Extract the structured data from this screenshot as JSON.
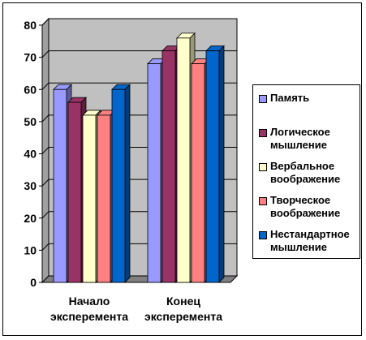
{
  "chart_data": {
    "type": "bar",
    "title": "",
    "xlabel": "",
    "ylabel": "",
    "ylim": [
      0,
      80
    ],
    "yticks": [
      0,
      10,
      20,
      30,
      40,
      50,
      60,
      70,
      80
    ],
    "grid": true,
    "legend_position": "right",
    "categories": [
      "Начало эксперемента",
      "Конец эксперемента"
    ],
    "series": [
      {
        "name": "Память",
        "values": [
          60,
          68
        ],
        "color": "#9999ff"
      },
      {
        "name": "Логическое мышление",
        "values": [
          56,
          72
        ],
        "color": "#993366"
      },
      {
        "name": "Вербальное воображение",
        "values": [
          52,
          76
        ],
        "color": "#ffffcc"
      },
      {
        "name": "Творческое воображение",
        "values": [
          52,
          68
        ],
        "color": "#ff8080"
      },
      {
        "name": "Нестандартное мышление",
        "values": [
          60,
          72
        ],
        "color": "#0066cc"
      }
    ]
  }
}
